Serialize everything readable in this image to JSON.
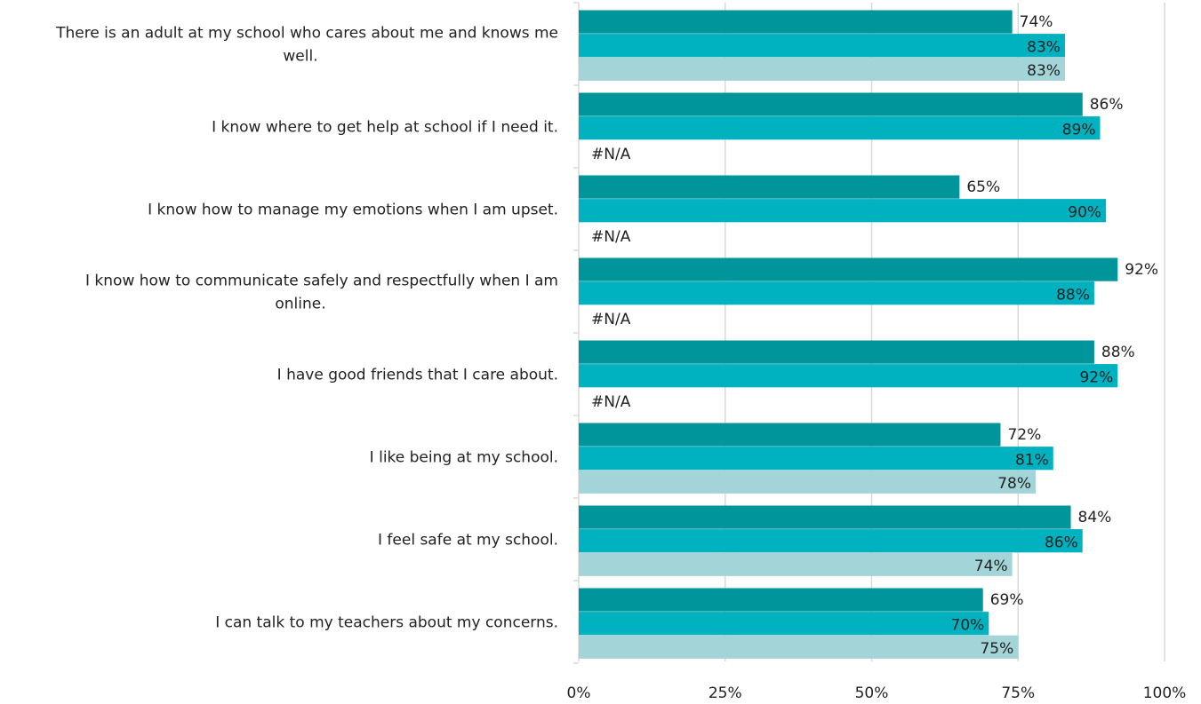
{
  "chart_data": {
    "type": "bar",
    "orientation": "horizontal",
    "xlim": [
      0,
      100
    ],
    "x_ticks": [
      "0%",
      "25%",
      "50%",
      "75%",
      "100%"
    ],
    "grid": "vertical",
    "legend": "none",
    "categories": [
      [
        "There is an adult at my school who cares about me and knows me",
        "well."
      ],
      [
        "I know where to get help at school if I need it."
      ],
      [
        "I know how to manage my emotions when I am upset."
      ],
      [
        "I know how to communicate safely and respectfully when I am",
        "online."
      ],
      [
        "I have good friends that I care about."
      ],
      [
        "I like being at my school."
      ],
      [
        "I feel safe at my school."
      ],
      [
        "I can talk to my teachers about my concerns."
      ]
    ],
    "series": [
      {
        "color": "#00959A",
        "values": [
          74,
          86,
          65,
          92,
          88,
          72,
          84,
          69
        ],
        "labels": [
          "74%",
          "86%",
          "65%",
          "92%",
          "88%",
          "72%",
          "84%",
          "69%"
        ]
      },
      {
        "color": "#00B2C0",
        "values": [
          83,
          89,
          90,
          88,
          92,
          81,
          86,
          70
        ],
        "labels": [
          "83%",
          "89%",
          "90%",
          "88%",
          "92%",
          "81%",
          "86%",
          "70%"
        ]
      },
      {
        "color": "#A2D4D8",
        "values": [
          83,
          null,
          null,
          null,
          null,
          78,
          74,
          75
        ],
        "labels": [
          "83%",
          "#N/A",
          "#N/A",
          "#N/A",
          "#N/A",
          "78%",
          "74%",
          "75%"
        ]
      }
    ]
  }
}
